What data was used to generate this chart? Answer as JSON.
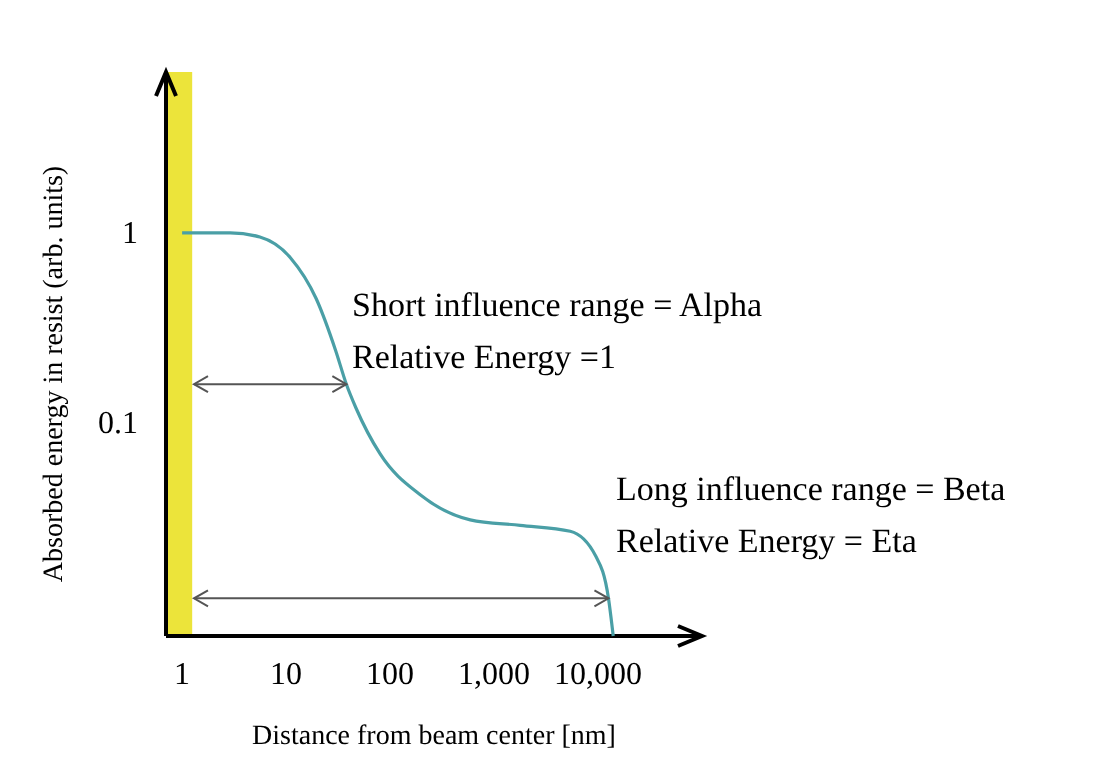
{
  "chart_data": {
    "type": "line",
    "xlabel": "Distance from beam center [nm]",
    "ylabel": "Absorbed energy in resist (arb. units)",
    "log": "xy",
    "xlim": [
      0.7,
      100000
    ],
    "ylim": [
      0.0076,
      7
    ],
    "xticks": [
      1,
      10,
      100,
      {
        "value": 1000,
        "label": "1,000"
      },
      {
        "value": 10000,
        "label": "10,000"
      }
    ],
    "yticks": [
      0.1,
      1
    ],
    "x": [
      1,
      2.9,
      5.6,
      11,
      19.5,
      30,
      38,
      47,
      80,
      195,
      590,
      1780,
      5400,
      9500,
      12600,
      14000
    ],
    "series": [
      {
        "color": "#4a9fa6",
        "values": [
          1,
          1,
          0.95,
          0.74,
          0.45,
          0.24,
          0.16,
          0.12,
          0.069,
          0.042,
          0.031,
          0.029,
          0.027,
          0.02,
          0.012,
          0.0076
        ]
      }
    ],
    "annotations": [
      "Short influence range = Alpha",
      {
        "text": "Relative Energy =1",
        "x": 38,
        "y": 0.16
      },
      "Long influence range = Beta",
      {
        "text": "Relative Energy = Eta",
        "x": 12600,
        "y": 0.012
      }
    ],
    "bands": [
      {
        "axis": "x",
        "from": 0.7,
        "to": 1.25,
        "color": "#ece43a"
      }
    ],
    "grid": false,
    "marker": "none",
    "line_style": "solid"
  }
}
